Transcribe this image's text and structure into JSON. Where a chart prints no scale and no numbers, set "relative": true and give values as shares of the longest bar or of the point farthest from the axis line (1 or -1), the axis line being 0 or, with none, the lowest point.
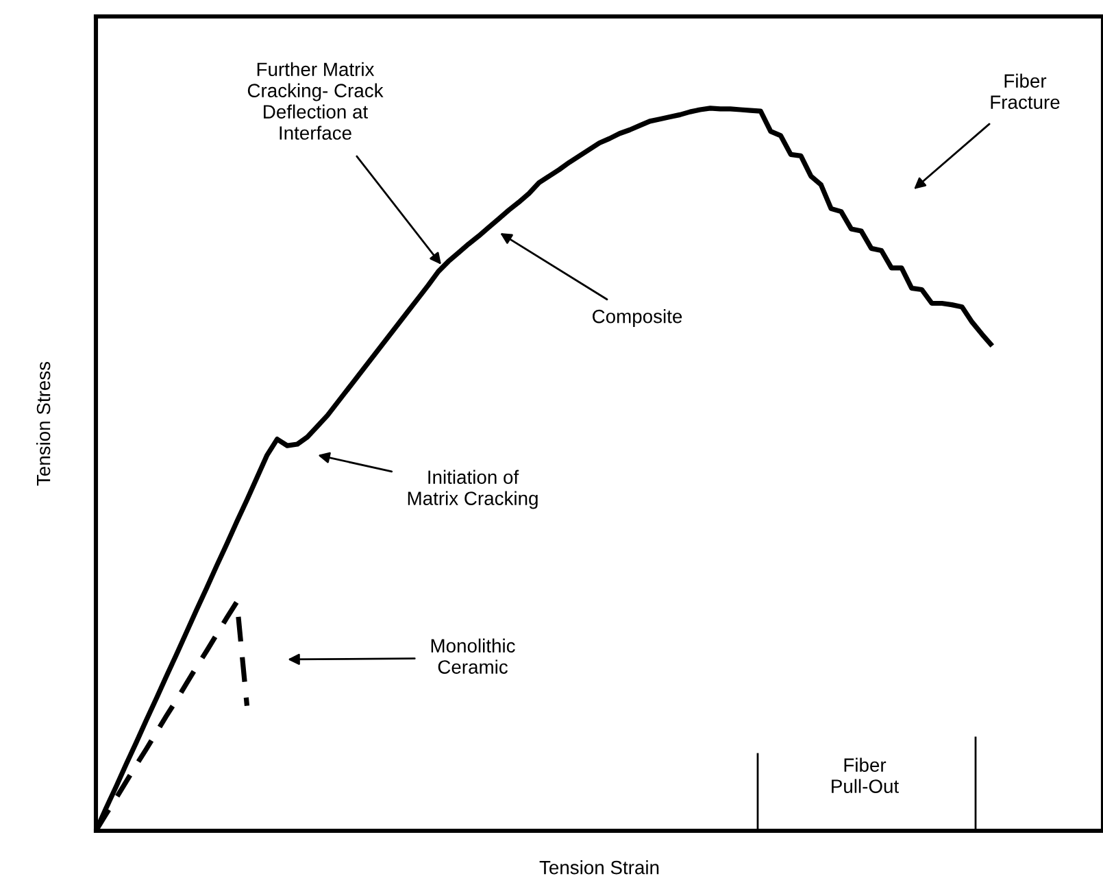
{
  "chart_data": {
    "type": "line",
    "relative": true,
    "xlabel": "Tension Strain",
    "ylabel": "Tension Stress",
    "marker": "none",
    "categories": [
      null,
      null,
      null,
      null,
      null,
      null,
      null,
      null,
      null,
      null,
      null,
      null,
      null,
      null,
      null,
      null,
      null,
      null,
      null,
      null,
      null,
      null,
      null,
      null,
      null,
      null,
      null,
      null,
      null,
      null,
      null,
      null,
      null,
      null,
      null,
      null,
      null,
      null,
      null,
      null,
      null,
      null,
      null,
      null,
      null,
      null,
      null,
      null,
      null,
      null,
      null,
      null,
      null,
      null,
      null,
      null,
      null,
      null,
      null,
      null,
      null,
      null,
      null,
      null,
      null,
      null,
      null,
      null,
      null,
      null,
      null,
      null,
      null,
      null,
      null,
      null,
      null,
      null,
      null,
      null,
      null,
      null,
      null,
      null,
      null,
      null,
      null,
      null,
      null,
      null,
      null,
      null,
      null,
      null,
      null,
      null,
      null,
      null,
      null,
      null,
      null
    ],
    "series": [
      {
        "color": "#000000",
        "line_style": "solid",
        "values": [
          0,
          0.031,
          0.061,
          0.092,
          0.122,
          0.153,
          0.183,
          0.214,
          0.244,
          0.275,
          0.306,
          0.336,
          0.367,
          0.397,
          0.428,
          0.458,
          0.489,
          0.52,
          0.542,
          0.533,
          0.535,
          0.545,
          0.56,
          0.575,
          0.593,
          0.611,
          0.629,
          0.647,
          0.665,
          0.683,
          0.701,
          0.719,
          0.737,
          0.755,
          0.774,
          0.788,
          0.8,
          0.812,
          0.823,
          0.835,
          0.847,
          0.859,
          0.87,
          0.882,
          0.897,
          0.906,
          0.915,
          0.925,
          0.934,
          0.943,
          0.952,
          0.958,
          0.965,
          0.97,
          0.976,
          0.982,
          0.985,
          0.988,
          0.991,
          0.995,
          0.998,
          1,
          0.999,
          0.999,
          0.998,
          0.997,
          0.996,
          0.968,
          0.962,
          0.936,
          0.934,
          0.906,
          0.894,
          0.861,
          0.857,
          0.833,
          0.83,
          0.806,
          0.803,
          0.779,
          0.779,
          0.751,
          0.749,
          0.73,
          0.73,
          0.728,
          0.725,
          0.704,
          0.687,
          0.671,
          null,
          null,
          null,
          null,
          null,
          null,
          null,
          null,
          null,
          null,
          null
        ]
      },
      {
        "color": "#000000",
        "line_style": "dashed",
        "values": [
          0,
          0.023,
          0.045,
          0.068,
          0.091,
          0.113,
          0.136,
          0.159,
          0.181,
          0.204,
          0.227,
          0.249,
          0.272,
          0.295,
          0.317,
          0.173,
          null,
          null,
          null,
          null,
          null,
          null,
          null,
          null,
          null,
          null,
          null,
          null,
          null,
          null,
          null,
          null,
          null,
          null,
          null,
          null,
          null,
          null,
          null,
          null,
          null,
          null,
          null,
          null,
          null,
          null,
          null,
          null,
          null,
          null,
          null,
          null,
          null,
          null,
          null,
          null,
          null,
          null,
          null,
          null,
          null,
          null,
          null,
          null,
          null,
          null,
          null,
          null,
          null,
          null,
          null,
          null,
          null,
          null,
          null,
          null,
          null,
          null,
          null,
          null,
          null,
          null,
          null,
          null,
          null,
          null,
          null,
          null,
          null,
          null,
          null,
          null,
          null,
          null,
          null,
          null,
          null,
          null,
          null,
          null,
          null
        ]
      }
    ],
    "annotations": [
      "Further Matrix\nCracking- Crack\nDeflection at\nInterface",
      "Composite",
      "Initiation of\nMatrix Cracking",
      "Monolithic\nCeramic",
      "Fiber\nFracture",
      "Fiber\nPull-Out"
    ]
  }
}
